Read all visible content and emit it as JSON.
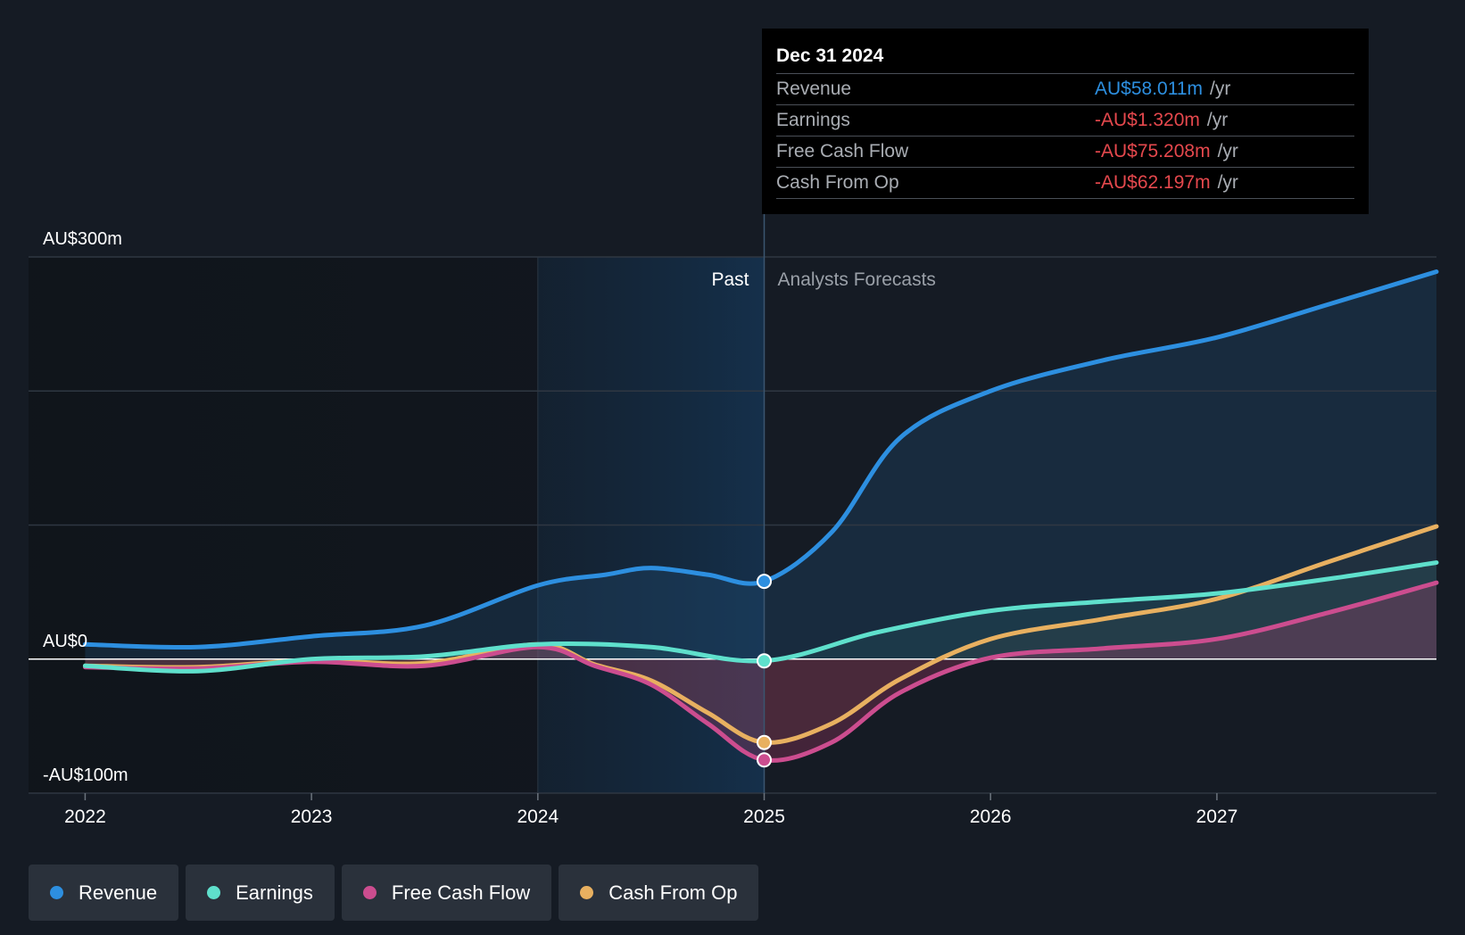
{
  "chart_data": {
    "type": "line",
    "y_unit": "AU$ millions",
    "ylim": [
      -100,
      300
    ],
    "xlim": [
      2021.75,
      2027.97
    ],
    "y_ticks": [
      {
        "value": 300,
        "label": "AU$300m"
      },
      {
        "value": 0,
        "label": "AU$0"
      },
      {
        "value": -100,
        "label": "-AU$100m"
      }
    ],
    "x_ticks": [
      {
        "value": 2022,
        "label": "2022"
      },
      {
        "value": 2023,
        "label": "2023"
      },
      {
        "value": 2024,
        "label": "2024"
      },
      {
        "value": 2025,
        "label": "2025"
      },
      {
        "value": 2026,
        "label": "2026"
      },
      {
        "value": 2027,
        "label": "2027"
      }
    ],
    "past_label": "Past",
    "forecast_label": "Analysts Forecasts",
    "divider_x": 2025,
    "highlight_start_x": 2024,
    "series": [
      {
        "name": "Revenue",
        "color": "#2d8fe0",
        "points": [
          [
            2022,
            11
          ],
          [
            2022.5,
            9
          ],
          [
            2023,
            17
          ],
          [
            2023.5,
            25
          ],
          [
            2024,
            55
          ],
          [
            2024.3,
            63
          ],
          [
            2024.5,
            68
          ],
          [
            2024.75,
            63
          ],
          [
            2025,
            58.011
          ],
          [
            2025.3,
            95
          ],
          [
            2025.6,
            165
          ],
          [
            2026,
            200
          ],
          [
            2026.5,
            223
          ],
          [
            2027,
            240
          ],
          [
            2027.5,
            265
          ],
          [
            2027.97,
            289
          ]
        ]
      },
      {
        "name": "Earnings",
        "color": "#5fe0cc",
        "points": [
          [
            2022,
            -5
          ],
          [
            2022.5,
            -9
          ],
          [
            2023,
            0
          ],
          [
            2023.5,
            2
          ],
          [
            2024,
            11
          ],
          [
            2024.5,
            9
          ],
          [
            2025,
            -1.32
          ],
          [
            2025.5,
            20
          ],
          [
            2026,
            36
          ],
          [
            2026.5,
            43
          ],
          [
            2027,
            49
          ],
          [
            2027.5,
            60
          ],
          [
            2027.97,
            72
          ]
        ]
      },
      {
        "name": "Free Cash Flow",
        "color": "#cc4d8f",
        "points": [
          [
            2022,
            -6
          ],
          [
            2022.5,
            -7
          ],
          [
            2023,
            -2
          ],
          [
            2023.5,
            -5
          ],
          [
            2024,
            9
          ],
          [
            2024.25,
            -5
          ],
          [
            2024.5,
            -19
          ],
          [
            2024.75,
            -48
          ],
          [
            2025,
            -75.208
          ],
          [
            2025.3,
            -62
          ],
          [
            2025.6,
            -25
          ],
          [
            2026,
            1
          ],
          [
            2026.5,
            8
          ],
          [
            2027,
            15
          ],
          [
            2027.5,
            35
          ],
          [
            2027.97,
            57
          ]
        ]
      },
      {
        "name": "Cash From Op",
        "color": "#e8b060",
        "points": [
          [
            2022,
            -5
          ],
          [
            2022.5,
            -6
          ],
          [
            2023,
            -1
          ],
          [
            2023.5,
            -3
          ],
          [
            2024,
            11
          ],
          [
            2024.25,
            -4
          ],
          [
            2024.5,
            -16
          ],
          [
            2024.75,
            -40
          ],
          [
            2025,
            -62.197
          ],
          [
            2025.3,
            -48
          ],
          [
            2025.6,
            -15
          ],
          [
            2026,
            15
          ],
          [
            2026.5,
            30
          ],
          [
            2027,
            45
          ],
          [
            2027.5,
            73
          ],
          [
            2027.97,
            99
          ]
        ]
      }
    ]
  },
  "tooltip": {
    "date": "Dec 31 2024",
    "rows": [
      {
        "label": "Revenue",
        "value": "AU$58.011m",
        "unit": "/yr",
        "color": "#2d8fe0"
      },
      {
        "label": "Earnings",
        "value": "-AU$1.320m",
        "unit": "/yr",
        "color": "#e5484d"
      },
      {
        "label": "Free Cash Flow",
        "value": "-AU$75.208m",
        "unit": "/yr",
        "color": "#e5484d"
      },
      {
        "label": "Cash From Op",
        "value": "-AU$62.197m",
        "unit": "/yr",
        "color": "#e5484d"
      }
    ]
  },
  "legend": [
    {
      "label": "Revenue",
      "color": "#2d8fe0"
    },
    {
      "label": "Earnings",
      "color": "#5fe0cc"
    },
    {
      "label": "Free Cash Flow",
      "color": "#cc4d8f"
    },
    {
      "label": "Cash From Op",
      "color": "#e8b060"
    }
  ]
}
